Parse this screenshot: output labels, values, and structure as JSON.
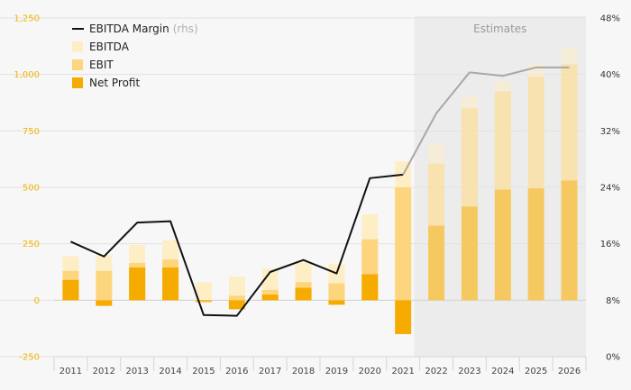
{
  "chart_data": {
    "type": "bar",
    "categories": [
      "2011",
      "2012",
      "2013",
      "2014",
      "2015",
      "2016",
      "2017",
      "2018",
      "2019",
      "2020",
      "2021",
      "2022",
      "2023",
      "2024",
      "2025",
      "2026"
    ],
    "series": [
      {
        "name": "EBITDA",
        "kind": "bar",
        "color": "#fdeec6",
        "values": [
          195,
          200,
          245,
          265,
          80,
          105,
          140,
          165,
          160,
          380,
          615,
          690,
          905,
          970,
          1045,
          1120
        ]
      },
      {
        "name": "EBIT",
        "kind": "bar",
        "color": "#fdd57e",
        "values": [
          130,
          130,
          165,
          180,
          -10,
          20,
          45,
          80,
          75,
          270,
          500,
          605,
          850,
          925,
          990,
          1045
        ]
      },
      {
        "name": "Net Profit",
        "kind": "bar",
        "color": "#f5ab00",
        "values": [
          90,
          -25,
          145,
          145,
          -5,
          -40,
          25,
          55,
          -20,
          115,
          -150,
          330,
          415,
          490,
          495,
          530
        ]
      },
      {
        "name": "EBITDA Margin",
        "kind": "line",
        "axis": "right",
        "color": "#111111",
        "values": [
          16.3,
          14.2,
          19.0,
          19.2,
          5.9,
          5.8,
          12.0,
          13.7,
          11.8,
          25.3,
          25.8,
          34.5,
          40.3,
          39.8,
          41.0,
          41.0
        ]
      }
    ],
    "legend": {
      "position": "top-left",
      "entries": [
        {
          "label": "EBITDA Margin",
          "suffix": "(rhs)",
          "swatch": "line",
          "color": "#111111"
        },
        {
          "label": "EBITDA",
          "suffix": "",
          "swatch": "box",
          "color": "#fdeec6"
        },
        {
          "label": "EBIT",
          "suffix": "",
          "swatch": "box",
          "color": "#fdd57e"
        },
        {
          "label": "Net Profit",
          "suffix": "",
          "swatch": "box",
          "color": "#f5ab00"
        }
      ]
    },
    "y_left": {
      "ylim": [
        -250,
        1250
      ],
      "ticks": [
        -250,
        0,
        250,
        500,
        750,
        1000,
        1250
      ],
      "tick_labels": [
        "-250",
        "0",
        "250",
        "500",
        "750",
        "1,000",
        "1,250"
      ],
      "color": "#f2b400"
    },
    "y_right": {
      "ylim": [
        0,
        48
      ],
      "ticks": [
        0,
        8,
        16,
        24,
        32,
        40,
        48
      ],
      "tick_labels": [
        "0%",
        "8%",
        "16%",
        "24%",
        "32%",
        "40%",
        "48%"
      ]
    },
    "estimates": {
      "label": "Estimates",
      "from": "2022",
      "to": "2026",
      "shade_color": "#ececec"
    },
    "grid": true,
    "title": "",
    "xlabel": "",
    "ylabel": ""
  }
}
